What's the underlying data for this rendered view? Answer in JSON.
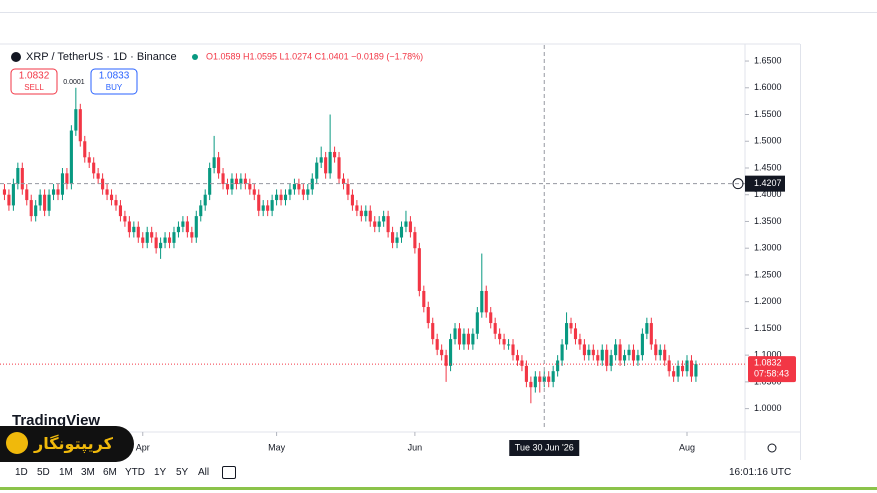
{
  "chart_data": {
    "type": "candlestick",
    "title": "XRP / TetherUS · 1D · Binance",
    "ohlc_text": "O1.0589 H1.0595 L1.0274 C1.0401 −0.0189 (−1.78%)",
    "sell": {
      "price": "1.0832",
      "label": "SELL"
    },
    "buy": {
      "price": "1.0833",
      "label": "BUY"
    },
    "spread": "0.0001",
    "up_color": "#089981",
    "down_color": "#f23645",
    "xlim": [
      -1,
      166
    ],
    "xticks": [
      {
        "value": 31,
        "label": "Apr"
      },
      {
        "value": 61,
        "label": "May"
      },
      {
        "value": 92,
        "label": "Jun"
      },
      {
        "value": 153,
        "label": "Aug"
      }
    ],
    "ylim": [
      0.96,
      1.68
    ],
    "yticks": [
      {
        "value": 1.65,
        "label": "1.6500"
      },
      {
        "value": 1.6,
        "label": "1.6000"
      },
      {
        "value": 1.55,
        "label": "1.5500"
      },
      {
        "value": 1.5,
        "label": "1.5000"
      },
      {
        "value": 1.45,
        "label": "1.4500"
      },
      {
        "value": 1.4,
        "label": "1.4000"
      },
      {
        "value": 1.35,
        "label": "1.3500"
      },
      {
        "value": 1.3,
        "label": "1.3000"
      },
      {
        "value": 1.25,
        "label": "1.2500"
      },
      {
        "value": 1.2,
        "label": "1.2000"
      },
      {
        "value": 1.15,
        "label": "1.1500"
      },
      {
        "value": 1.1,
        "label": "1.1000"
      },
      {
        "value": 1.05,
        "label": "1.0500"
      },
      {
        "value": 1.0,
        "label": "1.0000"
      }
    ],
    "crosshair": {
      "x": {
        "value": 121,
        "label": "Tue 30 Jun '26"
      },
      "y": 1.4207
    },
    "last_price": 1.0832,
    "countdown": "07:58:43",
    "open": [
      1.41,
      1.4,
      1.38,
      1.42,
      1.45,
      1.41,
      1.39,
      1.36,
      1.38,
      1.4,
      1.37,
      1.4,
      1.41,
      1.4,
      1.44,
      1.42,
      1.52,
      1.56,
      1.5,
      1.47,
      1.46,
      1.44,
      1.43,
      1.41,
      1.4,
      1.39,
      1.38,
      1.36,
      1.35,
      1.33,
      1.34,
      1.32,
      1.31,
      1.33,
      1.32,
      1.3,
      1.31,
      1.32,
      1.31,
      1.33,
      1.34,
      1.35,
      1.33,
      1.32,
      1.36,
      1.38,
      1.4,
      1.45,
      1.47,
      1.44,
      1.42,
      1.41,
      1.43,
      1.42,
      1.43,
      1.42,
      1.41,
      1.4,
      1.37,
      1.38,
      1.37,
      1.39,
      1.4,
      1.39,
      1.4,
      1.41,
      1.42,
      1.41,
      1.4,
      1.41,
      1.43,
      1.46,
      1.47,
      1.44,
      1.48,
      1.47,
      1.43,
      1.42,
      1.4,
      1.38,
      1.37,
      1.36,
      1.37,
      1.35,
      1.34,
      1.35,
      1.36,
      1.33,
      1.31,
      1.32,
      1.34,
      1.35,
      1.33,
      1.3,
      1.22,
      1.19,
      1.16,
      1.13,
      1.11,
      1.1,
      1.08,
      1.13,
      1.15,
      1.12,
      1.14,
      1.12,
      1.14,
      1.18,
      1.22,
      1.18,
      1.16,
      1.14,
      1.13,
      1.12,
      1.12,
      1.1,
      1.09,
      1.08,
      1.05,
      1.04,
      1.06,
      1.05,
      1.06,
      1.05,
      1.07,
      1.09,
      1.12,
      1.16,
      1.15,
      1.13,
      1.12,
      1.1,
      1.11,
      1.1,
      1.09,
      1.11,
      1.08,
      1.1,
      1.12,
      1.09,
      1.1,
      1.11,
      1.09,
      1.1,
      1.14,
      1.16,
      1.12,
      1.1,
      1.11,
      1.09,
      1.07,
      1.06,
      1.08,
      1.07,
      1.09,
      1.06
    ],
    "high": [
      1.42,
      1.41,
      1.43,
      1.46,
      1.46,
      1.42,
      1.4,
      1.39,
      1.41,
      1.41,
      1.41,
      1.42,
      1.42,
      1.45,
      1.45,
      1.53,
      1.6,
      1.57,
      1.51,
      1.48,
      1.47,
      1.45,
      1.44,
      1.42,
      1.41,
      1.4,
      1.39,
      1.37,
      1.36,
      1.35,
      1.35,
      1.33,
      1.34,
      1.34,
      1.33,
      1.32,
      1.33,
      1.33,
      1.34,
      1.35,
      1.36,
      1.36,
      1.34,
      1.37,
      1.39,
      1.41,
      1.46,
      1.51,
      1.48,
      1.45,
      1.43,
      1.44,
      1.44,
      1.44,
      1.44,
      1.43,
      1.42,
      1.41,
      1.39,
      1.39,
      1.4,
      1.41,
      1.41,
      1.41,
      1.42,
      1.43,
      1.43,
      1.42,
      1.42,
      1.44,
      1.47,
      1.49,
      1.48,
      1.55,
      1.49,
      1.48,
      1.44,
      1.43,
      1.41,
      1.39,
      1.38,
      1.38,
      1.38,
      1.36,
      1.36,
      1.37,
      1.37,
      1.34,
      1.33,
      1.35,
      1.37,
      1.36,
      1.34,
      1.31,
      1.23,
      1.2,
      1.17,
      1.14,
      1.12,
      1.11,
      1.14,
      1.16,
      1.16,
      1.15,
      1.15,
      1.15,
      1.19,
      1.29,
      1.23,
      1.19,
      1.17,
      1.15,
      1.14,
      1.13,
      1.13,
      1.11,
      1.1,
      1.09,
      1.06,
      1.07,
      1.07,
      1.07,
      1.07,
      1.08,
      1.1,
      1.13,
      1.18,
      1.17,
      1.16,
      1.14,
      1.13,
      1.12,
      1.12,
      1.11,
      1.12,
      1.12,
      1.11,
      1.13,
      1.13,
      1.11,
      1.12,
      1.12,
      1.11,
      1.15,
      1.17,
      1.17,
      1.13,
      1.12,
      1.12,
      1.1,
      1.08,
      1.09,
      1.09,
      1.1,
      1.1,
      1.09
    ],
    "low": [
      1.39,
      1.37,
      1.37,
      1.41,
      1.4,
      1.38,
      1.35,
      1.35,
      1.37,
      1.36,
      1.36,
      1.39,
      1.39,
      1.39,
      1.41,
      1.41,
      1.51,
      1.49,
      1.46,
      1.45,
      1.43,
      1.42,
      1.4,
      1.39,
      1.38,
      1.37,
      1.35,
      1.34,
      1.32,
      1.32,
      1.31,
      1.3,
      1.3,
      1.31,
      1.29,
      1.28,
      1.3,
      1.3,
      1.3,
      1.32,
      1.33,
      1.32,
      1.31,
      1.31,
      1.35,
      1.37,
      1.39,
      1.44,
      1.43,
      1.41,
      1.4,
      1.4,
      1.41,
      1.41,
      1.41,
      1.4,
      1.39,
      1.36,
      1.36,
      1.36,
      1.36,
      1.38,
      1.38,
      1.38,
      1.39,
      1.4,
      1.4,
      1.39,
      1.39,
      1.4,
      1.42,
      1.45,
      1.43,
      1.43,
      1.46,
      1.42,
      1.41,
      1.39,
      1.37,
      1.36,
      1.35,
      1.35,
      1.34,
      1.33,
      1.33,
      1.34,
      1.32,
      1.3,
      1.3,
      1.31,
      1.33,
      1.32,
      1.29,
      1.21,
      1.18,
      1.15,
      1.12,
      1.1,
      1.09,
      1.05,
      1.07,
      1.12,
      1.11,
      1.11,
      1.11,
      1.11,
      1.13,
      1.17,
      1.17,
      1.15,
      1.13,
      1.12,
      1.11,
      1.11,
      1.09,
      1.08,
      1.07,
      1.04,
      1.01,
      1.03,
      1.03,
      1.04,
      1.04,
      1.04,
      1.06,
      1.08,
      1.11,
      1.14,
      1.12,
      1.11,
      1.09,
      1.09,
      1.09,
      1.08,
      1.08,
      1.07,
      1.07,
      1.09,
      1.08,
      1.08,
      1.09,
      1.08,
      1.08,
      1.09,
      1.13,
      1.11,
      1.09,
      1.09,
      1.08,
      1.06,
      1.05,
      1.05,
      1.06,
      1.06,
      1.05,
      1.05
    ],
    "close": [
      1.4,
      1.38,
      1.42,
      1.45,
      1.41,
      1.39,
      1.36,
      1.38,
      1.4,
      1.37,
      1.4,
      1.41,
      1.4,
      1.44,
      1.42,
      1.52,
      1.56,
      1.5,
      1.47,
      1.46,
      1.44,
      1.43,
      1.41,
      1.4,
      1.39,
      1.38,
      1.36,
      1.35,
      1.33,
      1.34,
      1.32,
      1.31,
      1.33,
      1.32,
      1.3,
      1.31,
      1.32,
      1.31,
      1.33,
      1.34,
      1.35,
      1.33,
      1.32,
      1.36,
      1.38,
      1.4,
      1.45,
      1.47,
      1.44,
      1.42,
      1.41,
      1.43,
      1.42,
      1.43,
      1.42,
      1.41,
      1.4,
      1.37,
      1.38,
      1.37,
      1.39,
      1.4,
      1.39,
      1.4,
      1.41,
      1.42,
      1.41,
      1.4,
      1.41,
      1.43,
      1.46,
      1.47,
      1.44,
      1.48,
      1.47,
      1.43,
      1.42,
      1.4,
      1.38,
      1.37,
      1.36,
      1.37,
      1.35,
      1.34,
      1.35,
      1.36,
      1.33,
      1.31,
      1.32,
      1.34,
      1.35,
      1.33,
      1.3,
      1.22,
      1.19,
      1.16,
      1.13,
      1.11,
      1.1,
      1.08,
      1.13,
      1.15,
      1.12,
      1.14,
      1.12,
      1.14,
      1.18,
      1.22,
      1.18,
      1.16,
      1.14,
      1.13,
      1.12,
      1.12,
      1.1,
      1.09,
      1.08,
      1.05,
      1.04,
      1.06,
      1.05,
      1.06,
      1.05,
      1.07,
      1.09,
      1.12,
      1.16,
      1.15,
      1.13,
      1.12,
      1.1,
      1.11,
      1.1,
      1.09,
      1.11,
      1.08,
      1.1,
      1.12,
      1.09,
      1.1,
      1.11,
      1.09,
      1.1,
      1.14,
      1.16,
      1.12,
      1.1,
      1.11,
      1.09,
      1.07,
      1.06,
      1.08,
      1.07,
      1.09,
      1.06,
      1.0832
    ]
  },
  "watermark": "TradingView",
  "brand": "کریپتونگار",
  "timeframes": [
    "1D",
    "5D",
    "1M",
    "3M",
    "6M",
    "YTD",
    "1Y",
    "5Y",
    "All"
  ],
  "clock": "16:01:16 UTC"
}
